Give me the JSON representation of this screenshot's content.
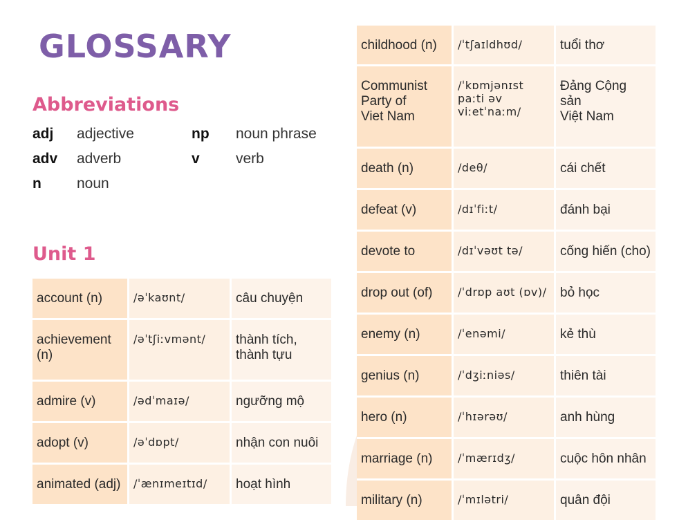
{
  "title": "GLOSSARY",
  "abbreviations": {
    "heading": "Abbreviations",
    "items": [
      {
        "key": "adj",
        "value": "adjective"
      },
      {
        "key": "np",
        "value": "noun phrase"
      },
      {
        "key": "adv",
        "value": "adverb"
      },
      {
        "key": "v",
        "value": "verb"
      },
      {
        "key": "n",
        "value": "noun"
      }
    ]
  },
  "unit1": {
    "heading": "Unit 1",
    "rows": [
      {
        "word": "account (n)",
        "ipa": "/əˈkaʊnt/",
        "meaning": "câu chuyện"
      },
      {
        "word": "achievement\n(n)",
        "ipa": "/əˈtʃiːvmənt/",
        "meaning": "thành tích,\nthành tựu"
      },
      {
        "word": "admire (v)",
        "ipa": "/ədˈmaɪə/",
        "meaning": "ngưỡng mộ"
      },
      {
        "word": "adopt (v)",
        "ipa": "/əˈdɒpt/",
        "meaning": "nhận con nuôi"
      },
      {
        "word": "animated (adj)",
        "ipa": "/ˈænɪmeɪtɪd/",
        "meaning": "hoạt hình"
      }
    ]
  },
  "glossary_right": {
    "rows": [
      {
        "word": "childhood (n)",
        "ipa": "/ˈtʃaɪldhʊd/",
        "meaning": "tuổi thơ"
      },
      {
        "word": "Communist\nParty of\nViet Nam",
        "ipa": "/ˈkɒmjənɪst\npaːti əv\nviːetˈnaːm/",
        "meaning": "Đảng Cộng sản\nViệt Nam"
      },
      {
        "word": "death (n)",
        "ipa": "/deθ/",
        "meaning": "cái chết"
      },
      {
        "word": "defeat (v)",
        "ipa": "/dɪˈfiːt/",
        "meaning": "đánh bại"
      },
      {
        "word": "devote to",
        "ipa": "/dɪˈvəʊt tə/",
        "meaning": "cống hiến (cho)"
      },
      {
        "word": "drop out (of)",
        "ipa": "/ˈdrɒp aʊt (ɒv)/",
        "meaning": "bỏ học"
      },
      {
        "word": "enemy (n)",
        "ipa": "/ˈenəmi/",
        "meaning": "kẻ thù"
      },
      {
        "word": "genius (n)",
        "ipa": "/ˈdʒiːniəs/",
        "meaning": "thiên tài"
      },
      {
        "word": "hero (n)",
        "ipa": "/ˈhɪərəʊ/",
        "meaning": "anh hùng"
      },
      {
        "word": "marriage (n)",
        "ipa": "/ˈmærɪdʒ/",
        "meaning": "cuộc hôn nhân"
      },
      {
        "word": "military (n)",
        "ipa": "/ˈmɪlətri/",
        "meaning": "quân đội"
      }
    ]
  },
  "colors": {
    "title": "#7e5ea8",
    "heading": "#de5a8c",
    "word_cell": "#fde3c8",
    "ipa_cell": "#fdf0e3"
  }
}
